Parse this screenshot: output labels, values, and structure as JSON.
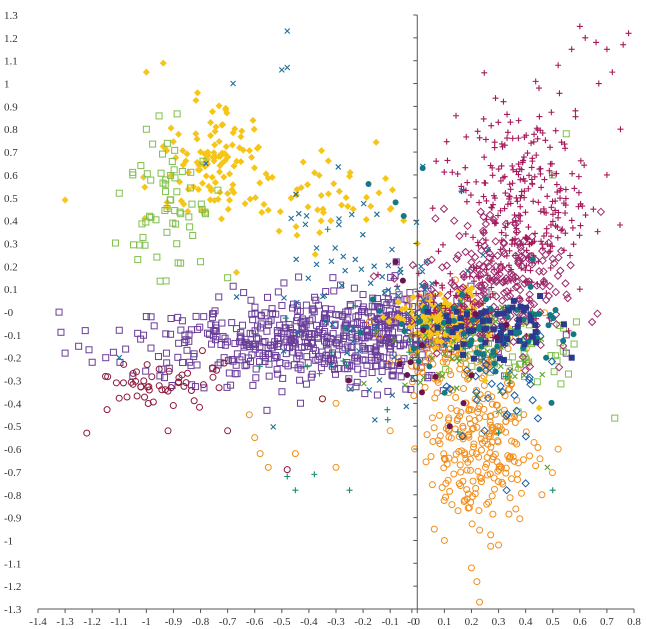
{
  "chart_data": {
    "type": "scatter",
    "title": "",
    "xlabel": "",
    "ylabel": "",
    "xlim": [
      -1.4,
      0.8
    ],
    "ylim": [
      -1.3,
      1.3
    ],
    "grid": false,
    "legend": "none",
    "x_ticks": [
      "-1.4",
      "-1.3",
      "-1.2",
      "-1.1",
      "-1",
      "-0.9",
      "-0.8",
      "-0.7",
      "-0.6",
      "-0.5",
      "-0.4",
      "-0.3",
      "-0.2",
      "-0.1",
      "-0",
      "0",
      "0.1",
      "0.2",
      "0.3",
      "0.4",
      "0.5",
      "0.6",
      "0.7",
      "0.8"
    ],
    "x_tick_values": [
      -1.4,
      -1.3,
      -1.2,
      -1.1,
      -1.0,
      -0.9,
      -0.8,
      -0.7,
      -0.6,
      -0.5,
      -0.4,
      -0.3,
      -0.2,
      -0.1,
      -0.02,
      0.0,
      0.1,
      0.2,
      0.3,
      0.4,
      0.5,
      0.6,
      0.7,
      0.8
    ],
    "y_ticks": [
      "1.3",
      "1.2",
      "1.1",
      "1",
      "0.9",
      "0.8",
      "0.7",
      "0.6",
      "0.5",
      "0.4",
      "0.3",
      "0.2",
      "0.1",
      "-0",
      "-0.1",
      "-0.2",
      "-0.3",
      "-0.4",
      "-0.5",
      "-0.6",
      "-0.7",
      "-0.8",
      "-0.9",
      "-1",
      "-1.1",
      "-1.2",
      "-1.3"
    ],
    "y_tick_values": [
      1.3,
      1.2,
      1.1,
      1.0,
      0.9,
      0.8,
      0.7,
      0.6,
      0.5,
      0.4,
      0.3,
      0.2,
      0.1,
      0.0,
      -0.1,
      -0.2,
      -0.3,
      -0.4,
      -0.5,
      -0.6,
      -0.7,
      -0.8,
      -0.9,
      -1.0,
      -1.1,
      -1.2,
      -1.3
    ],
    "series": [
      {
        "marker": "open-square",
        "color": "#6a3d9a",
        "clusters": [
          {
            "cx": -0.45,
            "cy": -0.12,
            "sx": 0.28,
            "sy": 0.1,
            "n": 480,
            "seed": 11
          },
          {
            "cx": -0.05,
            "cy": -0.05,
            "sx": 0.12,
            "sy": 0.08,
            "n": 180,
            "seed": 12
          }
        ],
        "points": [
          [
            -1.3,
            -0.18
          ],
          [
            -1.25,
            -0.15
          ],
          [
            -1.2,
            -0.22
          ],
          [
            -1.15,
            -0.2
          ],
          [
            -1.1,
            -0.08
          ],
          [
            -1.05,
            -0.28
          ],
          [
            -1.0,
            -0.02
          ],
          [
            -0.95,
            -0.28
          ],
          [
            0.55,
            -0.1
          ],
          [
            0.55,
            -0.18
          ]
        ]
      },
      {
        "marker": "open-circle",
        "color": "#f28e1c",
        "clusters": [
          {
            "cx": 0.22,
            "cy": -0.55,
            "sx": 0.1,
            "sy": 0.18,
            "n": 260,
            "seed": 21
          },
          {
            "cx": 0.15,
            "cy": -0.12,
            "sx": 0.12,
            "sy": 0.1,
            "n": 110,
            "seed": 22
          }
        ],
        "points": [
          [
            -0.62,
            -0.45
          ],
          [
            -0.6,
            -0.55
          ],
          [
            -0.58,
            -0.62
          ],
          [
            -0.55,
            -0.68
          ],
          [
            -0.45,
            -0.62
          ],
          [
            -0.3,
            -0.68
          ],
          [
            -0.1,
            -0.52
          ],
          [
            0.1,
            -1.0
          ],
          [
            0.2,
            -1.12
          ],
          [
            0.22,
            -1.18
          ],
          [
            0.23,
            -1.27
          ],
          [
            0.3,
            -1.02
          ],
          [
            0.46,
            -0.8
          ],
          [
            0.52,
            -0.6
          ],
          [
            -0.35,
            -0.38
          ],
          [
            -0.3,
            -0.4
          ]
        ]
      },
      {
        "marker": "filled-diamond",
        "color": "#f5c518",
        "clusters": [
          {
            "cx": -0.75,
            "cy": 0.65,
            "sx": 0.1,
            "sy": 0.15,
            "n": 120,
            "seed": 31
          },
          {
            "cx": 0.1,
            "cy": -0.03,
            "sx": 0.08,
            "sy": 0.06,
            "n": 170,
            "seed": 32
          },
          {
            "cx": -0.3,
            "cy": 0.5,
            "sx": 0.12,
            "sy": 0.1,
            "n": 40,
            "seed": 33
          }
        ],
        "points": [
          [
            -1.3,
            0.49
          ],
          [
            -1.0,
            1.05
          ],
          [
            -0.1,
            0.45
          ],
          [
            -0.05,
            0.4
          ],
          [
            0.0,
            0.3
          ],
          [
            0.45,
            -0.42
          ],
          [
            0.25,
            -0.3
          ]
        ]
      },
      {
        "marker": "open-square",
        "color": "#7fbf4d",
        "clusters": [
          {
            "cx": -0.92,
            "cy": 0.45,
            "sx": 0.08,
            "sy": 0.14,
            "n": 60,
            "seed": 41
          },
          {
            "cx": 0.35,
            "cy": -0.15,
            "sx": 0.1,
            "sy": 0.1,
            "n": 60,
            "seed": 42
          }
        ],
        "points": [
          [
            -1.1,
            0.52
          ],
          [
            -1.05,
            0.6
          ],
          [
            -1.0,
            0.8
          ],
          [
            -0.8,
            0.22
          ],
          [
            -0.7,
            0.15
          ],
          [
            0.55,
            0.78
          ],
          [
            0.5,
            0.6
          ]
        ]
      },
      {
        "marker": "plus",
        "color": "#a6195b",
        "clusters": [
          {
            "cx": 0.38,
            "cy": 0.48,
            "sx": 0.12,
            "sy": 0.2,
            "n": 280,
            "seed": 51
          },
          {
            "cx": 0.2,
            "cy": 0.05,
            "sx": 0.12,
            "sy": 0.1,
            "n": 80,
            "seed": 52
          }
        ],
        "points": [
          [
            0.6,
            1.25
          ],
          [
            0.62,
            1.2
          ],
          [
            0.66,
            1.18
          ],
          [
            0.7,
            1.15
          ],
          [
            0.76,
            1.17
          ],
          [
            0.78,
            1.22
          ],
          [
            0.72,
            1.05
          ],
          [
            0.67,
            1.0
          ],
          [
            0.57,
            1.15
          ],
          [
            0.52,
            1.08
          ],
          [
            0.75,
            0.8
          ],
          [
            0.7,
            0.6
          ],
          [
            0.65,
            0.45
          ],
          [
            0.6,
            0.1
          ]
        ]
      },
      {
        "marker": "open-diamond",
        "color": "#9c2a6b",
        "clusters": [
          {
            "cx": 0.3,
            "cy": 0.1,
            "sx": 0.13,
            "sy": 0.15,
            "n": 230,
            "seed": 61
          }
        ],
        "points": []
      },
      {
        "marker": "open-circle",
        "color": "#8b1a3a",
        "clusters": [
          {
            "cx": -0.95,
            "cy": -0.32,
            "sx": 0.15,
            "sy": 0.06,
            "n": 50,
            "seed": 71
          }
        ],
        "points": [
          [
            -1.22,
            -0.53
          ],
          [
            -0.92,
            -0.52
          ],
          [
            -0.7,
            -0.52
          ],
          [
            -0.48,
            -0.69
          ],
          [
            -0.35,
            -0.38
          ]
        ]
      },
      {
        "marker": "x",
        "color": "#1f6f9a",
        "clusters": [
          {
            "cx": -0.15,
            "cy": 0.1,
            "sx": 0.25,
            "sy": 0.22,
            "n": 90,
            "seed": 81
          }
        ],
        "points": [
          [
            -0.48,
            1.23
          ],
          [
            -0.48,
            1.07
          ],
          [
            -0.5,
            1.06
          ],
          [
            -0.68,
            1.0
          ],
          [
            -0.78,
            0.65
          ],
          [
            -1.1,
            -0.2
          ]
        ]
      },
      {
        "marker": "filled-circle",
        "color": "#137a85",
        "clusters": [
          {
            "cx": 0.25,
            "cy": -0.1,
            "sx": 0.18,
            "sy": 0.1,
            "n": 70,
            "seed": 91
          }
        ],
        "points": [
          [
            0.02,
            0.63
          ],
          [
            -0.18,
            0.56
          ],
          [
            -0.08,
            0.48
          ],
          [
            -0.05,
            0.42
          ]
        ]
      },
      {
        "marker": "x",
        "color": "#5aa02c",
        "clusters": [
          {
            "cx": 0.15,
            "cy": -0.2,
            "sx": 0.15,
            "sy": 0.12,
            "n": 50,
            "seed": 101
          }
        ],
        "points": [
          [
            0.48,
            -0.68
          ]
        ]
      },
      {
        "marker": "filled-square",
        "color": "#2b3a8c",
        "clusters": [
          {
            "cx": 0.3,
            "cy": -0.08,
            "sx": 0.12,
            "sy": 0.06,
            "n": 60,
            "seed": 111
          }
        ],
        "points": [
          [
            0.57,
            -0.2
          ]
        ]
      },
      {
        "marker": "open-diamond",
        "color": "#1a5fa8",
        "clusters": [
          {
            "cx": 0.3,
            "cy": -0.3,
            "sx": 0.12,
            "sy": 0.12,
            "n": 30,
            "seed": 121
          }
        ],
        "points": [
          [
            0.33,
            -0.78
          ],
          [
            0.4,
            -0.75
          ]
        ]
      },
      {
        "marker": "plus",
        "color": "#148f6f",
        "clusters": [
          {
            "cx": -0.1,
            "cy": -0.25,
            "sx": 0.3,
            "sy": 0.2,
            "n": 20,
            "seed": 131
          }
        ],
        "points": [
          [
            -0.48,
            -0.72
          ],
          [
            -0.45,
            -0.78
          ],
          [
            -0.25,
            -0.78
          ],
          [
            0.3,
            -0.53
          ],
          [
            0.5,
            -0.78
          ]
        ]
      },
      {
        "marker": "filled-circle",
        "color": "#6b1550",
        "clusters": [
          {
            "cx": 0.1,
            "cy": -0.2,
            "sx": 0.15,
            "sy": 0.15,
            "n": 14,
            "seed": 141
          }
        ],
        "points": [
          [
            0.12,
            -0.5
          ],
          [
            -0.08,
            0.22
          ]
        ]
      }
    ]
  }
}
